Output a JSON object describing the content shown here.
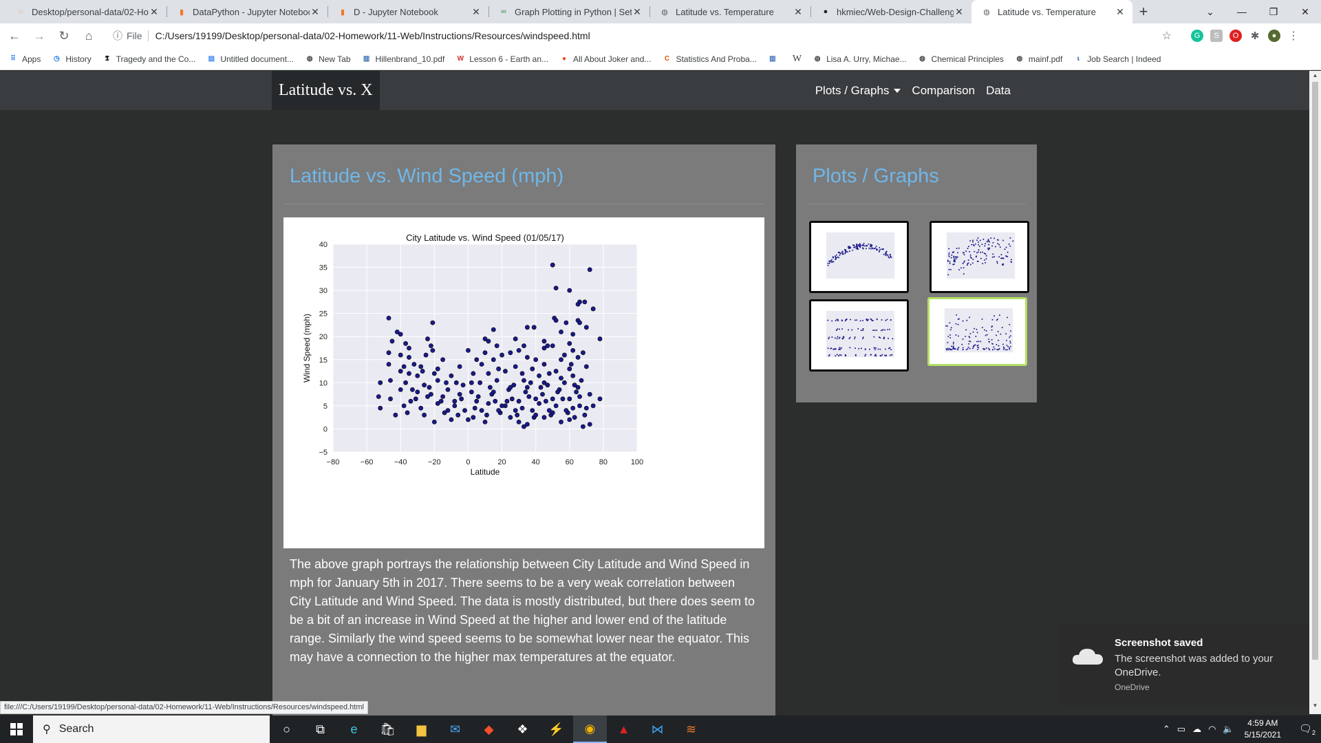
{
  "browser": {
    "tabs": [
      {
        "title": "Desktop/personal-data/02-Hom",
        "icon": "jupyter-icon",
        "active": false
      },
      {
        "title": "DataPython - Jupyter Notebook",
        "icon": "jupyter-notebook-icon",
        "active": false
      },
      {
        "title": "D - Jupyter Notebook",
        "icon": "jupyter-notebook-icon",
        "active": false
      },
      {
        "title": "Graph Plotting in Python | Set 1",
        "icon": "geeksforgeeks-icon",
        "active": false
      },
      {
        "title": "Latitude vs. Temperature",
        "icon": "globe-icon",
        "active": false
      },
      {
        "title": "hkmiec/Web-Design-Challenge",
        "icon": "github-icon",
        "active": false
      },
      {
        "title": "Latitude vs. Temperature",
        "icon": "globe-icon",
        "active": true
      }
    ],
    "file_label": "File",
    "url": "C:/Users/19199/Desktop/personal-data/02-Homework/11-Web/Instructions/Resources/windspeed.html",
    "bookmarks": [
      {
        "label": "Apps",
        "icon": "apps-grid-icon"
      },
      {
        "label": "History",
        "icon": "history-icon"
      },
      {
        "label": "Tragedy and the Co...",
        "icon": "nyt-icon"
      },
      {
        "label": "Untitled document...",
        "icon": "google-docs-icon"
      },
      {
        "label": "New Tab",
        "icon": "globe-icon"
      },
      {
        "label": "Hillenbrand_10.pdf",
        "icon": "building-icon"
      },
      {
        "label": "Lesson 6 - Earth an...",
        "icon": "wa-icon"
      },
      {
        "label": "All About Joker and...",
        "icon": "circle-icon"
      },
      {
        "label": "Statistics And Proba...",
        "icon": "coursera-icon"
      },
      {
        "label": "",
        "icon": "building-icon"
      },
      {
        "label": "W",
        "icon": ""
      },
      {
        "label": "Lisa A. Urry, Michae...",
        "icon": "globe-icon"
      },
      {
        "label": "Chemical Principles",
        "icon": "globe-icon"
      },
      {
        "label": "mainf.pdf",
        "icon": "globe-icon"
      },
      {
        "label": "Job Search | Indeed",
        "icon": "indeed-icon"
      }
    ],
    "status_url": "file:///C:/Users/19199/Desktop/personal-data/02-Homework/11-Web/Instructions/Resources/windspeed.html"
  },
  "site": {
    "brand": "Latitude vs. X",
    "nav": {
      "plots": "Plots / Graphs",
      "comparison": "Comparison",
      "data": "Data"
    },
    "main": {
      "title": "Latitude vs. Wind Speed (mph)",
      "description": "The above graph portrays the relationship between City Latitude and Wind Speed in mph for January 5th in 2017. There seems to be a very weak correlation between City Latitude and Wind Speed. The data is mostly distributed, but there does seem to be a bit of an increase in Wind Speed at the higher and lower end of the latitude range. Similarly the wind speed seems to be somewhat lower near the equator. This may have a connection to the higher max temperatures at the equator."
    },
    "side": {
      "title": "Plots / Graphs"
    }
  },
  "chart_data": {
    "type": "scatter",
    "title": "City Latitude vs. Wind Speed (01/05/17)",
    "xlabel": "Latitude",
    "ylabel": "Wind Speed (mph)",
    "xlim": [
      -80,
      100
    ],
    "ylim": [
      -5,
      40
    ],
    "xticks": [
      -80,
      -60,
      -40,
      -20,
      0,
      20,
      40,
      60,
      80,
      100
    ],
    "yticks": [
      -5,
      0,
      5,
      10,
      15,
      20,
      25,
      30,
      35,
      40
    ],
    "marker_color": "#1a1a8c",
    "points": [
      [
        50,
        35.5
      ],
      [
        72,
        34.5
      ],
      [
        52,
        30.5
      ],
      [
        60,
        30
      ],
      [
        66,
        27.5
      ],
      [
        65,
        27
      ],
      [
        69,
        27.5
      ],
      [
        74,
        26
      ],
      [
        -47,
        24
      ],
      [
        51,
        24
      ],
      [
        52,
        23.5
      ],
      [
        65,
        23.5
      ],
      [
        -21,
        23
      ],
      [
        66,
        23
      ],
      [
        70,
        22
      ],
      [
        15,
        21.5
      ],
      [
        35,
        22
      ],
      [
        39,
        22
      ],
      [
        -42,
        21
      ],
      [
        -40,
        20.5
      ],
      [
        55,
        21
      ],
      [
        62,
        20.5
      ],
      [
        -24,
        19.5
      ],
      [
        10,
        19.5
      ],
      [
        78,
        19.5
      ],
      [
        12,
        19
      ],
      [
        -37,
        18.5
      ],
      [
        45,
        19
      ],
      [
        -22,
        18
      ],
      [
        47,
        18
      ],
      [
        50,
        18
      ],
      [
        60,
        18.5
      ],
      [
        -35,
        17.5
      ],
      [
        -21,
        17
      ],
      [
        0,
        17
      ],
      [
        -47,
        16.5
      ],
      [
        10,
        16.5
      ],
      [
        20,
        16
      ],
      [
        25,
        16.5
      ],
      [
        30,
        17
      ],
      [
        -40,
        16
      ],
      [
        -35,
        15.5
      ],
      [
        -25,
        16
      ],
      [
        -15,
        15
      ],
      [
        5,
        15
      ],
      [
        15,
        15
      ],
      [
        35,
        15.5
      ],
      [
        40,
        15
      ],
      [
        55,
        15
      ],
      [
        65,
        15.5
      ],
      [
        -47,
        14
      ],
      [
        -32,
        14
      ],
      [
        -28,
        13.5
      ],
      [
        -18,
        13
      ],
      [
        -5,
        13.5
      ],
      [
        8,
        14
      ],
      [
        18,
        13
      ],
      [
        28,
        13.5
      ],
      [
        45,
        14
      ],
      [
        60,
        13
      ],
      [
        70,
        13.5
      ],
      [
        -40,
        12.5
      ],
      [
        -35,
        12
      ],
      [
        -30,
        11.5
      ],
      [
        -20,
        12
      ],
      [
        -10,
        11.5
      ],
      [
        12,
        12
      ],
      [
        22,
        12.5
      ],
      [
        32,
        12
      ],
      [
        42,
        11.5
      ],
      [
        52,
        12.5
      ],
      [
        62,
        11.5
      ],
      [
        -52,
        10
      ],
      [
        -46,
        10.5
      ],
      [
        -37,
        10
      ],
      [
        -26,
        9.5
      ],
      [
        -13,
        10
      ],
      [
        -3,
        9.5
      ],
      [
        7,
        10
      ],
      [
        17,
        10.5
      ],
      [
        27,
        9.5
      ],
      [
        37,
        10
      ],
      [
        47,
        9.5
      ],
      [
        57,
        10
      ],
      [
        67,
        10.5
      ],
      [
        -40,
        8.5
      ],
      [
        -30,
        8
      ],
      [
        -22,
        7.5
      ],
      [
        -12,
        8.5
      ],
      [
        2,
        8
      ],
      [
        14,
        7.5
      ],
      [
        24,
        8.5
      ],
      [
        34,
        8
      ],
      [
        44,
        7.5
      ],
      [
        54,
        8.5
      ],
      [
        64,
        8
      ],
      [
        72,
        7.5
      ],
      [
        -53,
        7
      ],
      [
        -46,
        6.5
      ],
      [
        -34,
        6
      ],
      [
        -24,
        7
      ],
      [
        -16,
        6
      ],
      [
        -4,
        6.5
      ],
      [
        6,
        7
      ],
      [
        16,
        6
      ],
      [
        26,
        6.5
      ],
      [
        36,
        7
      ],
      [
        46,
        6
      ],
      [
        56,
        6.5
      ],
      [
        66,
        7
      ],
      [
        78,
        6.5
      ],
      [
        -52,
        4.5
      ],
      [
        -38,
        5
      ],
      [
        -28,
        4.5
      ],
      [
        -18,
        5.5
      ],
      [
        -8,
        5
      ],
      [
        4,
        4.5
      ],
      [
        12,
        5.5
      ],
      [
        22,
        5
      ],
      [
        32,
        4.5
      ],
      [
        42,
        5.5
      ],
      [
        52,
        5
      ],
      [
        62,
        4.5
      ],
      [
        74,
        5
      ],
      [
        -43,
        3
      ],
      [
        -36,
        3.5
      ],
      [
        -26,
        3
      ],
      [
        -14,
        3.5
      ],
      [
        -6,
        3
      ],
      [
        3,
        2.5
      ],
      [
        11,
        3
      ],
      [
        19,
        3.5
      ],
      [
        29,
        3
      ],
      [
        39,
        2.5
      ],
      [
        49,
        3
      ],
      [
        59,
        3.5
      ],
      [
        69,
        3
      ],
      [
        -20,
        1.5
      ],
      [
        -10,
        2
      ],
      [
        0,
        2
      ],
      [
        10,
        1.5
      ],
      [
        30,
        1.5
      ],
      [
        33,
        0.5
      ],
      [
        35,
        1
      ],
      [
        55,
        1.5
      ],
      [
        68,
        0.5
      ],
      [
        72,
        1
      ],
      [
        -12,
        4
      ],
      [
        -2,
        4
      ],
      [
        8,
        4
      ],
      [
        18,
        4
      ],
      [
        28,
        4
      ],
      [
        38,
        4
      ],
      [
        48,
        4
      ],
      [
        58,
        4
      ],
      [
        -15,
        7
      ],
      [
        -5,
        7.5
      ],
      [
        5,
        6
      ],
      [
        15,
        8
      ],
      [
        25,
        9
      ],
      [
        35,
        9
      ],
      [
        45,
        10
      ],
      [
        55,
        11
      ],
      [
        65,
        9
      ],
      [
        40,
        3
      ],
      [
        45,
        2.5
      ],
      [
        50,
        3.5
      ],
      [
        60,
        2
      ],
      [
        63,
        2.5
      ],
      [
        25,
        2.5
      ],
      [
        20,
        5
      ],
      [
        30,
        6
      ],
      [
        40,
        6.5
      ],
      [
        50,
        6.5
      ],
      [
        60,
        6.5
      ],
      [
        66,
        5
      ],
      [
        70,
        4.5
      ],
      [
        57,
        16
      ],
      [
        61,
        14
      ],
      [
        48,
        12
      ],
      [
        38,
        13
      ],
      [
        -45,
        19
      ],
      [
        -18,
        10.5
      ],
      [
        -8,
        6
      ],
      [
        2,
        10
      ],
      [
        13,
        9
      ],
      [
        23,
        6
      ],
      [
        33,
        10.5
      ],
      [
        43,
        9
      ],
      [
        53,
        8
      ],
      [
        63,
        9.5
      ],
      [
        -33,
        8.5
      ],
      [
        -27,
        12.5
      ],
      [
        -23,
        9
      ],
      [
        -38,
        13.5
      ],
      [
        -31,
        6.5
      ],
      [
        58,
        23
      ],
      [
        62,
        17
      ],
      [
        45,
        17.5
      ],
      [
        33,
        18
      ],
      [
        28,
        19.5
      ],
      [
        17,
        18
      ],
      [
        3,
        12
      ],
      [
        -7,
        10
      ],
      [
        68,
        16.5
      ]
    ]
  },
  "thumbnails": [
    {
      "label": "thumb-max-temp",
      "selected": false
    },
    {
      "label": "thumb-humidity",
      "selected": false
    },
    {
      "label": "thumb-cloudiness",
      "selected": false
    },
    {
      "label": "thumb-wind-speed",
      "selected": true
    }
  ],
  "toast": {
    "title": "Screenshot saved",
    "body": "The screenshot was added to your OneDrive.",
    "source": "OneDrive"
  },
  "taskbar": {
    "search_placeholder": "Search",
    "time": "4:59 AM",
    "date": "5/15/2021",
    "notification_count": "2"
  }
}
